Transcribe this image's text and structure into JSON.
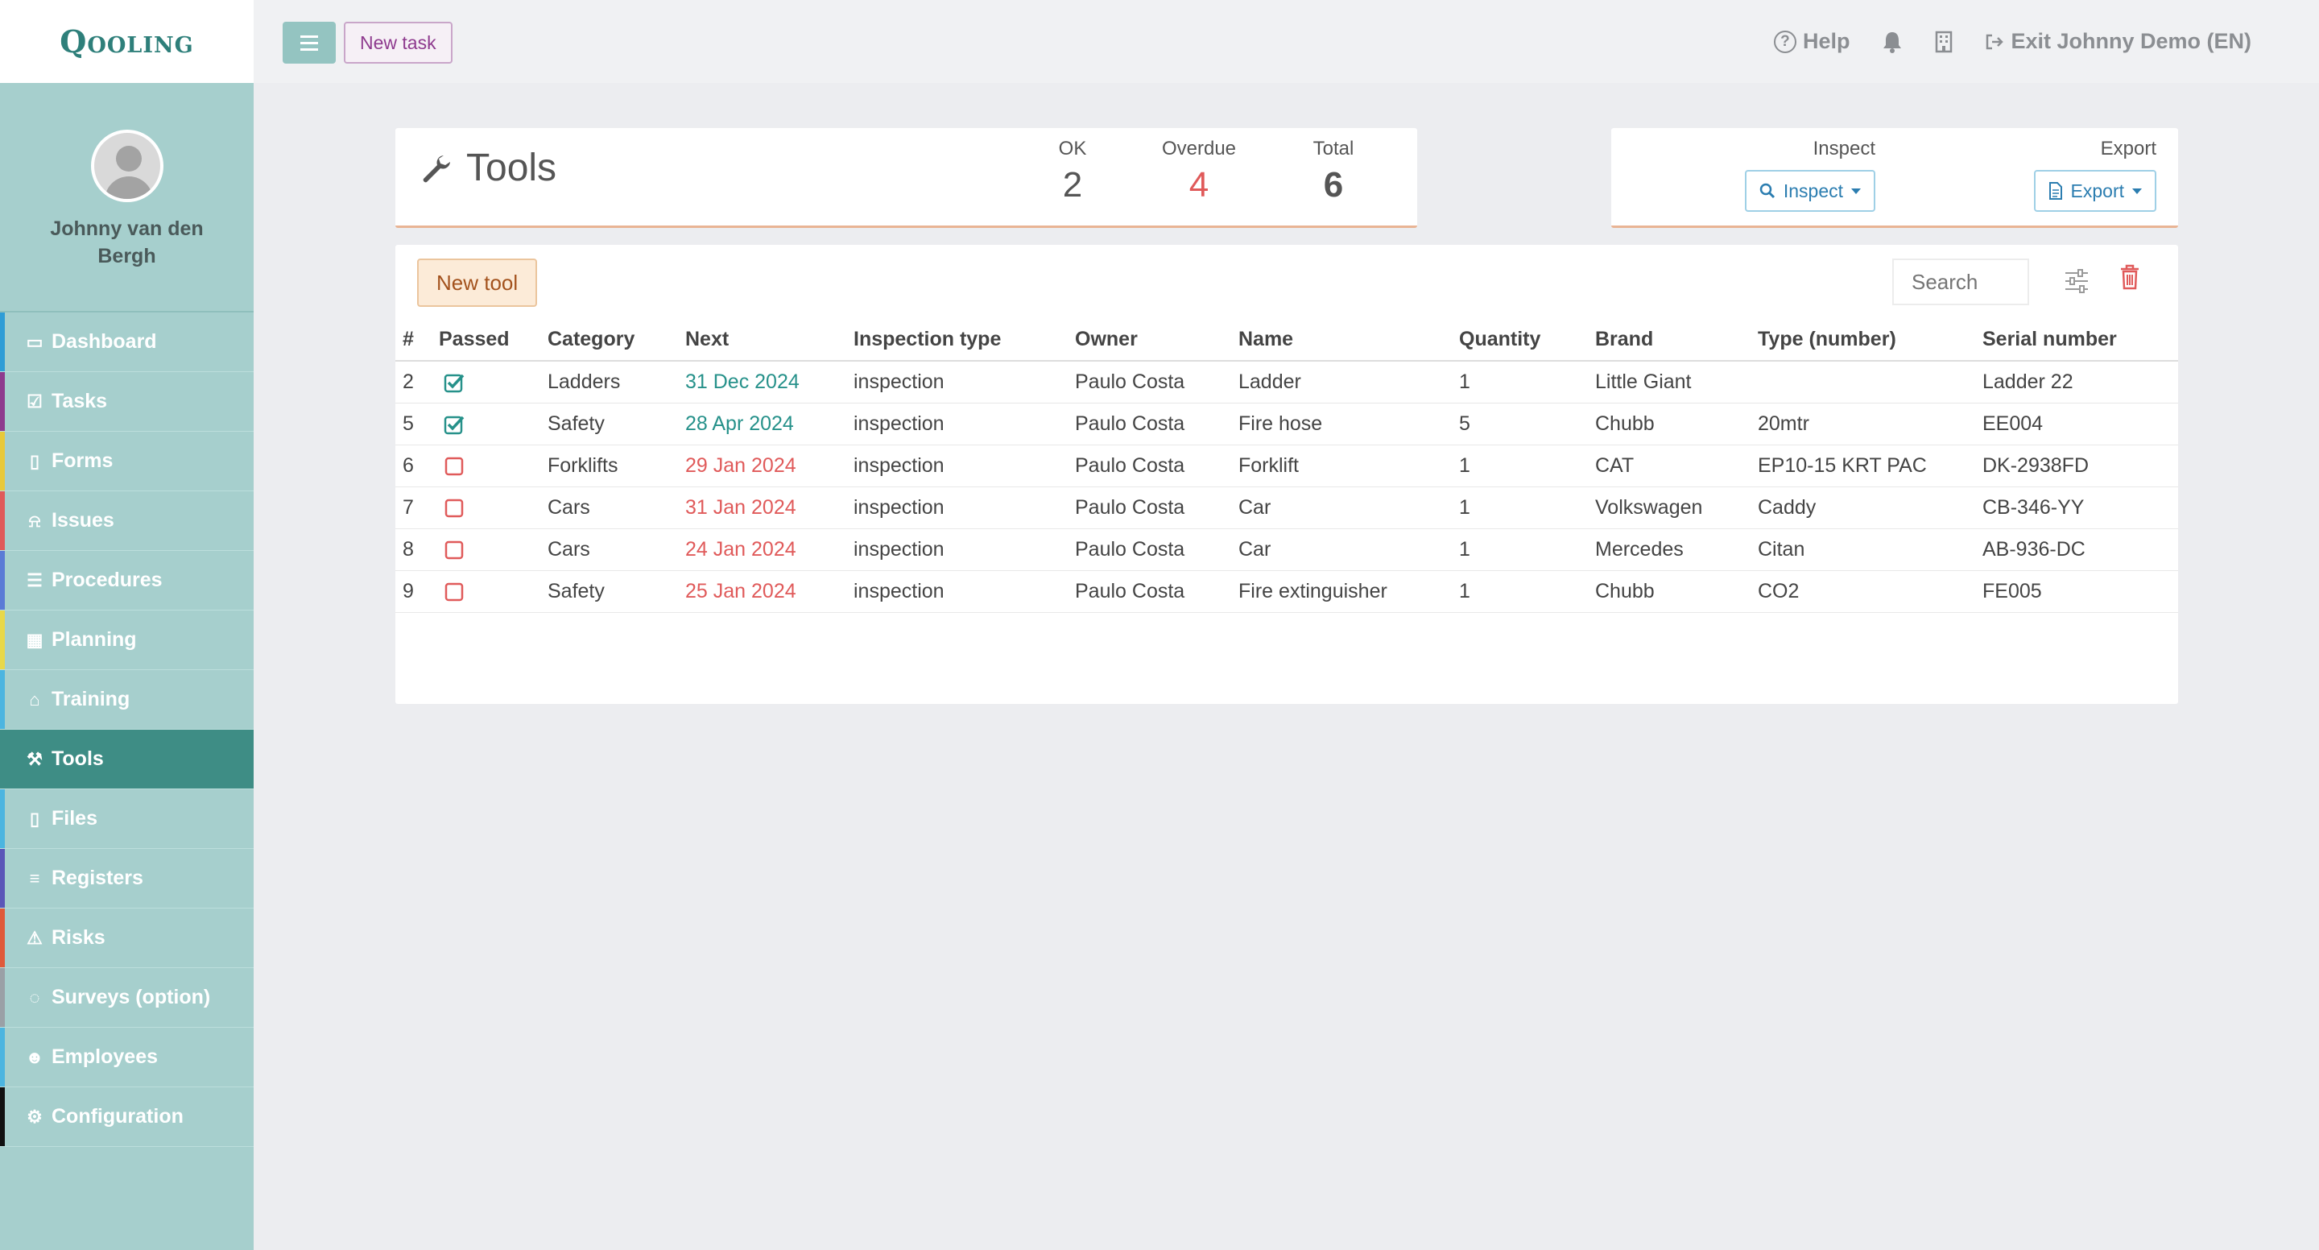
{
  "app": {
    "logo": "Qooling"
  },
  "user": {
    "name": "Johnny van den Bergh"
  },
  "sidebar": {
    "items": [
      {
        "label": "Dashboard",
        "icon": "monitor-icon",
        "color": "#2f9dd6"
      },
      {
        "label": "Tasks",
        "icon": "check-square-icon",
        "color": "#8e3a8e"
      },
      {
        "label": "Forms",
        "icon": "file-icon",
        "color": "#e8c93a"
      },
      {
        "label": "Issues",
        "icon": "bell-icon",
        "color": "#e05a5a"
      },
      {
        "label": "Procedures",
        "icon": "list-alt-icon",
        "color": "#5b7bd6"
      },
      {
        "label": "Planning",
        "icon": "calendar-icon",
        "color": "#e8d84a"
      },
      {
        "label": "Training",
        "icon": "graduation-cap-icon",
        "color": "#4cb5e0"
      },
      {
        "label": "Tools",
        "icon": "wrench-icon",
        "color": "#3e8d85",
        "active": true
      },
      {
        "label": "Files",
        "icon": "file-pdf-icon",
        "color": "#4cb5e0"
      },
      {
        "label": "Registers",
        "icon": "list-icon",
        "color": "#5b56b8"
      },
      {
        "label": "Risks",
        "icon": "warning-icon",
        "color": "#e05a3a"
      },
      {
        "label": "Surveys (option)",
        "icon": "comments-icon",
        "color": "#9aa0a6"
      },
      {
        "label": "Employees",
        "icon": "users-icon",
        "color": "#4cb5e0"
      },
      {
        "label": "Configuration",
        "icon": "gear-icon",
        "color": "#111111"
      }
    ]
  },
  "topbar": {
    "new_task": "New task",
    "help": "Help",
    "exit": "Exit Johnny Demo (EN)"
  },
  "tools_card": {
    "title": "Tools",
    "ok_label": "OK",
    "ok_value": "2",
    "overdue_label": "Overdue",
    "overdue_value": "4",
    "total_label": "Total",
    "total_value": "6"
  },
  "actions": {
    "inspect_label": "Inspect",
    "inspect_button": "Inspect",
    "export_label": "Export",
    "export_button": "Export"
  },
  "table": {
    "new_tool": "New tool",
    "search_placeholder": "Search",
    "headers": [
      "#",
      "Passed",
      "Category",
      "Next",
      "Inspection type",
      "Owner",
      "Name",
      "Quantity",
      "Brand",
      "Type (number)",
      "Serial number"
    ],
    "rows": [
      {
        "num": "2",
        "passed": true,
        "category": "Ladders",
        "next": "31 Dec 2024",
        "next_ok": true,
        "inspection_type": "inspection",
        "owner": "Paulo Costa",
        "name": "Ladder",
        "quantity": "1",
        "brand": "Little Giant",
        "type": "",
        "serial": "Ladder 22"
      },
      {
        "num": "5",
        "passed": true,
        "category": "Safety",
        "next": "28 Apr 2024",
        "next_ok": true,
        "inspection_type": "inspection",
        "owner": "Paulo Costa",
        "name": "Fire hose",
        "quantity": "5",
        "brand": "Chubb",
        "type": "20mtr",
        "serial": "EE004"
      },
      {
        "num": "6",
        "passed": false,
        "category": "Forklifts",
        "next": "29 Jan 2024",
        "next_ok": false,
        "inspection_type": "inspection",
        "owner": "Paulo Costa",
        "name": "Forklift",
        "quantity": "1",
        "brand": "CAT",
        "type": "EP10-15 KRT PAC",
        "serial": "DK-2938FD"
      },
      {
        "num": "7",
        "passed": false,
        "category": "Cars",
        "next": "31 Jan 2024",
        "next_ok": false,
        "inspection_type": "inspection",
        "owner": "Paulo Costa",
        "name": "Car",
        "quantity": "1",
        "brand": "Volkswagen",
        "type": "Caddy",
        "serial": "CB-346-YY"
      },
      {
        "num": "8",
        "passed": false,
        "category": "Cars",
        "next": "24 Jan 2024",
        "next_ok": false,
        "inspection_type": "inspection",
        "owner": "Paulo Costa",
        "name": "Car",
        "quantity": "1",
        "brand": "Mercedes",
        "type": "Citan",
        "serial": "AB-936-DC"
      },
      {
        "num": "9",
        "passed": false,
        "category": "Safety",
        "next": "25 Jan 2024",
        "next_ok": false,
        "inspection_type": "inspection",
        "owner": "Paulo Costa",
        "name": "Fire extinguisher",
        "quantity": "1",
        "brand": "Chubb",
        "type": "CO2",
        "serial": "FE005"
      }
    ]
  }
}
